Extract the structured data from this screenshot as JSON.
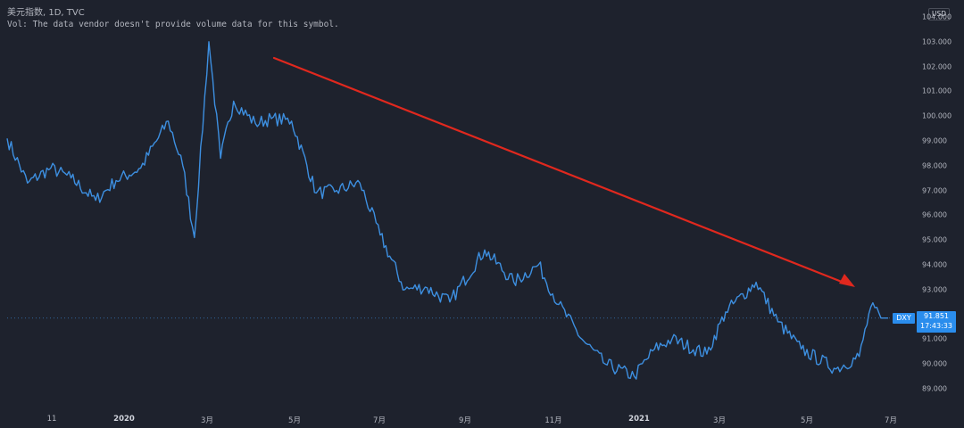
{
  "header": {
    "symbol_line": "美元指数, 1D, TVC",
    "vol_line": "Vol: The data vendor doesn't provide volume data for this symbol."
  },
  "price_axis": {
    "currency": "USD",
    "ticks": [
      "104.000",
      "103.000",
      "102.000",
      "101.000",
      "100.000",
      "99.000",
      "98.000",
      "97.000",
      "96.000",
      "95.000",
      "94.000",
      "93.000",
      "92.000",
      "91.000",
      "90.000",
      "89.000"
    ]
  },
  "price_label": {
    "symbol": "DXY",
    "price": "91.851",
    "time": "17:43:33"
  },
  "x_axis": {
    "ticks": [
      {
        "label": "11",
        "bold": false
      },
      {
        "label": "2020",
        "bold": true
      },
      {
        "label": "3月",
        "bold": false
      },
      {
        "label": "5月",
        "bold": false
      },
      {
        "label": "7月",
        "bold": false
      },
      {
        "label": "9月",
        "bold": false
      },
      {
        "label": "11月",
        "bold": false
      },
      {
        "label": "2021",
        "bold": true
      },
      {
        "label": "3月",
        "bold": false
      },
      {
        "label": "5月",
        "bold": false
      },
      {
        "label": "7月",
        "bold": false
      }
    ]
  },
  "colors": {
    "background": "#1e222d",
    "line": "#3d8fe0",
    "arrow": "#e0281e",
    "label_bg": "#2a8ded"
  },
  "chart_data": {
    "type": "line",
    "x": [
      "2019-11-01",
      "2019-11-15",
      "2019-12-01",
      "2019-12-15",
      "2020-01-01",
      "2020-01-15",
      "2020-02-01",
      "2020-02-20",
      "2020-03-01",
      "2020-03-09",
      "2020-03-19",
      "2020-03-27",
      "2020-04-05",
      "2020-04-20",
      "2020-05-01",
      "2020-05-15",
      "2020-06-01",
      "2020-06-15",
      "2020-07-01",
      "2020-07-15",
      "2020-08-01",
      "2020-08-15",
      "2020-09-01",
      "2020-09-25",
      "2020-10-15",
      "2020-11-01",
      "2020-11-15",
      "2020-12-01",
      "2020-12-17",
      "2021-01-06",
      "2021-01-20",
      "2021-02-01",
      "2021-02-25",
      "2021-03-10",
      "2021-03-31",
      "2021-04-15",
      "2021-05-01",
      "2021-05-25",
      "2021-06-10",
      "2021-06-18",
      "2021-06-25"
    ],
    "values": [
      99.1,
      97.3,
      97.9,
      97.5,
      96.6,
      97.4,
      97.9,
      99.8,
      98.0,
      95.1,
      103.0,
      98.3,
      100.6,
      99.7,
      99.9,
      99.8,
      96.9,
      97.0,
      97.3,
      95.2,
      93.0,
      93.1,
      92.5,
      94.6,
      93.3,
      94.0,
      92.4,
      91.0,
      90.0,
      89.5,
      90.6,
      91.0,
      90.4,
      92.1,
      93.3,
      91.7,
      90.6,
      89.8,
      90.3,
      92.3,
      91.851
    ],
    "series": [
      {
        "name": "美元指数",
        "values": "see values"
      }
    ],
    "ylim": [
      88.5,
      104.5
    ],
    "last_price": 91.851,
    "grid": true,
    "annotation": "red downward trend arrow"
  }
}
